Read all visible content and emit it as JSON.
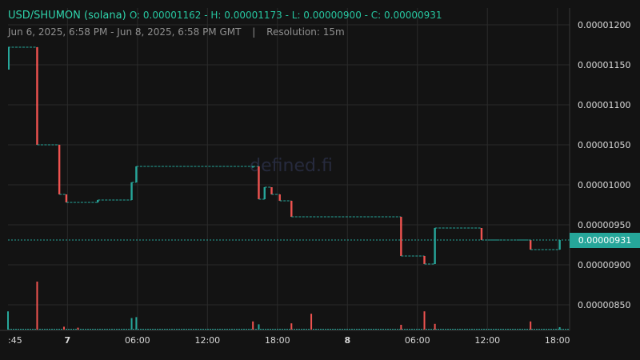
{
  "header": {
    "pair": "USD/SHUMON (solana)",
    "ohlc": "O: 0.00001162 - H: 0.00001173 - L: 0.00000900 - C: 0.00000931",
    "range": "Jun 6, 2025, 6:58 PM - Jun 8, 2025, 6:58 PM GMT",
    "separator": "|",
    "resolution": "Resolution: 15m"
  },
  "watermark": "defined.fi",
  "current_price_label": "0.00000931",
  "colors": {
    "background": "#131313",
    "grid": "#2a2a2a",
    "up": "#26a69a",
    "down": "#ef5350",
    "text": "#d9d9d9",
    "header_green": "#26c6a0"
  },
  "chart_data": {
    "type": "candlestick",
    "title": "USD/SHUMON (solana)",
    "resolution": "15m",
    "x_range": [
      "2025-06-06T18:58",
      "2025-06-08T18:58"
    ],
    "x_ticks": [
      ":45",
      "7",
      "06:00",
      "12:00",
      "18:00",
      "8",
      "06:00",
      "12:00",
      "18:00"
    ],
    "y_ticks": [
      "0.00000850",
      "0.00000900",
      "0.00000950",
      "0.00001000",
      "0.00001050",
      "0.00001100",
      "0.00001150",
      "0.00001200"
    ],
    "ylim": [
      8.3e-06,
      1.22e-05
    ],
    "grid": true,
    "current_price": 9.31e-06,
    "ohlc": {
      "open": 1.162e-05,
      "high": 1.173e-05,
      "low": 9e-06,
      "close": 9.31e-06
    },
    "price_path": [
      {
        "hours": 0.0,
        "price": 1.172e-05
      },
      {
        "hours": 2.5,
        "price": 1.05e-05
      },
      {
        "hours": 4.4,
        "price": 9.88e-06
      },
      {
        "hours": 5.0,
        "price": 9.78e-06
      },
      {
        "hours": 7.7,
        "price": 9.81e-06
      },
      {
        "hours": 10.6,
        "price": 1.003e-05
      },
      {
        "hours": 11.0,
        "price": 1.023e-05
      },
      {
        "hours": 21.0,
        "price": 1.023e-05
      },
      {
        "hours": 21.5,
        "price": 9.82e-06
      },
      {
        "hours": 22.0,
        "price": 9.97e-06
      },
      {
        "hours": 22.6,
        "price": 9.88e-06
      },
      {
        "hours": 23.3,
        "price": 9.8e-06
      },
      {
        "hours": 24.3,
        "price": 9.6e-06
      },
      {
        "hours": 33.7,
        "price": 9.11e-06
      },
      {
        "hours": 35.7,
        "price": 9.01e-06
      },
      {
        "hours": 36.6,
        "price": 9.46e-06
      },
      {
        "hours": 40.6,
        "price": 9.31e-06
      },
      {
        "hours": 44.8,
        "price": 9.19e-06
      },
      {
        "hours": 47.3,
        "price": 9.31e-06
      }
    ],
    "volume_spikes": [
      {
        "hours": 0.0,
        "relative": 0.38,
        "dir": "up"
      },
      {
        "hours": 2.5,
        "relative": 1.0,
        "dir": "down"
      },
      {
        "hours": 4.8,
        "relative": 0.06,
        "dir": "down"
      },
      {
        "hours": 6.0,
        "relative": 0.04,
        "dir": "down"
      },
      {
        "hours": 10.6,
        "relative": 0.24,
        "dir": "up"
      },
      {
        "hours": 11.0,
        "relative": 0.26,
        "dir": "up"
      },
      {
        "hours": 21.0,
        "relative": 0.17,
        "dir": "down"
      },
      {
        "hours": 21.5,
        "relative": 0.11,
        "dir": "up"
      },
      {
        "hours": 24.3,
        "relative": 0.13,
        "dir": "down"
      },
      {
        "hours": 26.0,
        "relative": 0.33,
        "dir": "down"
      },
      {
        "hours": 33.7,
        "relative": 0.1,
        "dir": "down"
      },
      {
        "hours": 35.7,
        "relative": 0.38,
        "dir": "down"
      },
      {
        "hours": 36.6,
        "relative": 0.12,
        "dir": "down"
      },
      {
        "hours": 44.8,
        "relative": 0.17,
        "dir": "down"
      },
      {
        "hours": 47.3,
        "relative": 0.05,
        "dir": "up"
      }
    ]
  }
}
